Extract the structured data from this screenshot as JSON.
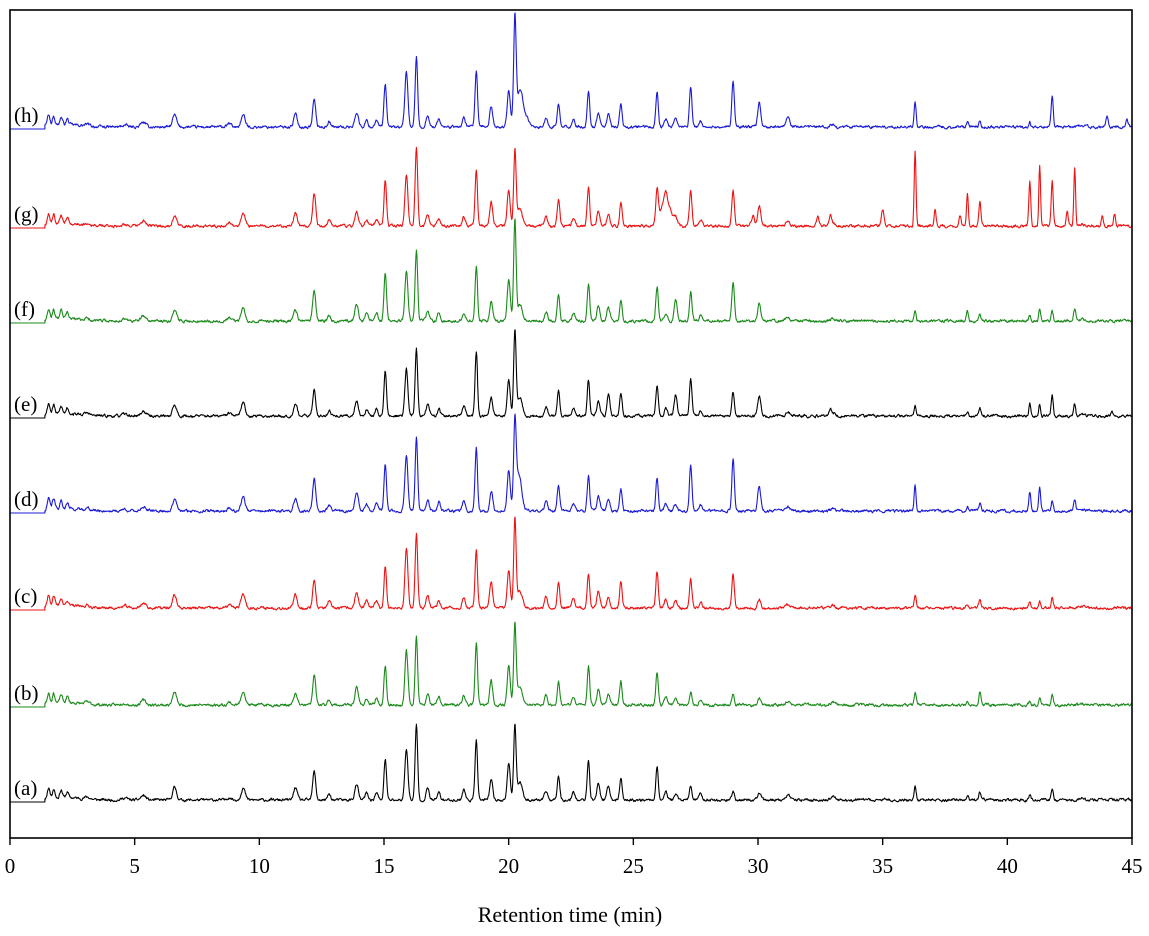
{
  "chart_data": {
    "type": "line",
    "title": "",
    "xlabel": "Retention time (min)",
    "ylabel": "",
    "xlim": [
      0,
      45
    ],
    "x_ticks": [
      "0",
      "5",
      "10",
      "15",
      "20",
      "25",
      "30",
      "35",
      "40",
      "45"
    ],
    "y_axis_visible": false,
    "grid": false,
    "legend": "none",
    "layout": "stacked offset chromatograms, (a) at bottom to (h) at top",
    "x_start": 1.4,
    "x_end": 45,
    "baseline": 2,
    "shared_peaks": [
      [
        1.55,
        12,
        0.05
      ],
      [
        1.75,
        10,
        0.05
      ],
      [
        2.05,
        8,
        0.05
      ],
      [
        2.3,
        6,
        0.05
      ],
      [
        3.1,
        2,
        0.1
      ],
      [
        4.6,
        2,
        0.1
      ],
      [
        5.35,
        5,
        0.1
      ],
      [
        6.6,
        12,
        0.08
      ],
      [
        8.8,
        3,
        0.08
      ],
      [
        9.35,
        13,
        0.08
      ],
      [
        11.45,
        12,
        0.07
      ],
      [
        12.2,
        30,
        0.06
      ],
      [
        12.8,
        6,
        0.06
      ],
      [
        13.9,
        16,
        0.07
      ],
      [
        14.3,
        7,
        0.06
      ],
      [
        14.7,
        7,
        0.06
      ],
      [
        15.05,
        42,
        0.05
      ],
      [
        15.9,
        52,
        0.06
      ],
      [
        16.3,
        72,
        0.05
      ],
      [
        16.75,
        12,
        0.06
      ],
      [
        17.2,
        8,
        0.06
      ],
      [
        18.2,
        10,
        0.06
      ],
      [
        18.7,
        58,
        0.05
      ],
      [
        19.3,
        22,
        0.06
      ],
      [
        20.0,
        38,
        0.06
      ],
      [
        20.25,
        82,
        0.05
      ],
      [
        20.45,
        18,
        0.1
      ],
      [
        21.5,
        10,
        0.06
      ],
      [
        22.0,
        26,
        0.05
      ],
      [
        22.6,
        8,
        0.06
      ],
      [
        23.2,
        36,
        0.05
      ],
      [
        23.6,
        16,
        0.06
      ],
      [
        24.0,
        12,
        0.06
      ],
      [
        24.5,
        24,
        0.05
      ],
      [
        25.95,
        34,
        0.05
      ],
      [
        26.3,
        8,
        0.06
      ],
      [
        26.7,
        7,
        0.06
      ],
      [
        27.3,
        15,
        0.05
      ],
      [
        27.7,
        6,
        0.06
      ],
      [
        29.0,
        10,
        0.05
      ],
      [
        30.05,
        8,
        0.06
      ],
      [
        31.2,
        4,
        0.08
      ],
      [
        33.0,
        3,
        0.08
      ],
      [
        36.3,
        12,
        0.04
      ],
      [
        38.4,
        4,
        0.04
      ],
      [
        38.9,
        8,
        0.04
      ],
      [
        40.9,
        5,
        0.04
      ],
      [
        41.8,
        10,
        0.04
      ],
      [
        43.0,
        2,
        0.1
      ]
    ],
    "series": [
      {
        "label": "(a)",
        "color": "#000000",
        "scale": 1.0,
        "seed": 11,
        "extra_peaks": []
      },
      {
        "label": "(b)",
        "color": "#1a8a1a",
        "scale": 1.0,
        "seed": 23,
        "extra_peaks": [
          [
            38.9,
            6,
            0.04
          ],
          [
            41.3,
            6,
            0.04
          ]
        ]
      },
      {
        "label": "(c)",
        "color": "#ee1111",
        "scale": 1.05,
        "seed": 37,
        "extra_peaks": [
          [
            27.3,
            12,
            0.05
          ],
          [
            29.0,
            22,
            0.05
          ],
          [
            41.3,
            6,
            0.04
          ]
        ]
      },
      {
        "label": "(d)",
        "color": "#1a1ad6",
        "scale": 1.0,
        "seed": 41,
        "extra_peaks": [
          [
            20.35,
            22,
            0.12
          ],
          [
            27.3,
            30,
            0.05
          ],
          [
            29.0,
            42,
            0.05
          ],
          [
            30.05,
            18,
            0.06
          ],
          [
            36.3,
            14,
            0.04
          ],
          [
            40.9,
            14,
            0.04
          ],
          [
            41.3,
            24,
            0.04
          ],
          [
            42.7,
            12,
            0.04
          ]
        ]
      },
      {
        "label": "(e)",
        "color": "#000000",
        "scale": 1.0,
        "seed": 53,
        "extra_peaks": [
          [
            24.0,
            10,
            0.05
          ],
          [
            26.7,
            16,
            0.06
          ],
          [
            27.3,
            20,
            0.05
          ],
          [
            29.0,
            14,
            0.05
          ],
          [
            30.05,
            12,
            0.06
          ],
          [
            32.9,
            6,
            0.05
          ],
          [
            40.9,
            8,
            0.04
          ],
          [
            41.3,
            12,
            0.04
          ],
          [
            41.8,
            12,
            0.04
          ],
          [
            42.7,
            12,
            0.04
          ],
          [
            44.2,
            5,
            0.04
          ]
        ]
      },
      {
        "label": "(f)",
        "color": "#1a8a1a",
        "scale": 1.0,
        "seed": 67,
        "extra_peaks": [
          [
            20.25,
            12,
            0.05
          ],
          [
            26.7,
            16,
            0.06
          ],
          [
            27.3,
            14,
            0.05
          ],
          [
            29.0,
            30,
            0.05
          ],
          [
            30.05,
            10,
            0.06
          ],
          [
            38.4,
            6,
            0.04
          ],
          [
            41.3,
            12,
            0.04
          ],
          [
            42.7,
            12,
            0.04
          ]
        ]
      },
      {
        "label": "(g)",
        "color": "#ee1111",
        "scale": 1.0,
        "seed": 79,
        "extra_peaks": [
          [
            26.3,
            26,
            0.2
          ],
          [
            27.3,
            22,
            0.05
          ],
          [
            29.0,
            26,
            0.05
          ],
          [
            29.8,
            10,
            0.06
          ],
          [
            30.05,
            14,
            0.06
          ],
          [
            32.4,
            10,
            0.05
          ],
          [
            32.9,
            10,
            0.05
          ],
          [
            35.0,
            16,
            0.05
          ],
          [
            36.3,
            62,
            0.035
          ],
          [
            37.1,
            16,
            0.04
          ],
          [
            38.1,
            10,
            0.04
          ],
          [
            38.4,
            30,
            0.035
          ],
          [
            38.9,
            18,
            0.04
          ],
          [
            40.9,
            40,
            0.04
          ],
          [
            41.3,
            62,
            0.035
          ],
          [
            41.8,
            36,
            0.04
          ],
          [
            42.4,
            14,
            0.04
          ],
          [
            42.7,
            58,
            0.035
          ],
          [
            43.8,
            10,
            0.04
          ],
          [
            44.3,
            12,
            0.04
          ]
        ]
      },
      {
        "label": "(h)",
        "color": "#1a1ad6",
        "scale": 1.0,
        "seed": 97,
        "extra_peaks": [
          [
            20.25,
            30,
            0.05
          ],
          [
            20.5,
            20,
            0.2
          ],
          [
            27.3,
            24,
            0.05
          ],
          [
            29.0,
            36,
            0.05
          ],
          [
            30.05,
            18,
            0.06
          ],
          [
            31.2,
            6,
            0.06
          ],
          [
            36.3,
            14,
            0.04
          ],
          [
            41.8,
            22,
            0.04
          ],
          [
            44.0,
            10,
            0.05
          ],
          [
            44.8,
            8,
            0.05
          ]
        ]
      }
    ]
  }
}
